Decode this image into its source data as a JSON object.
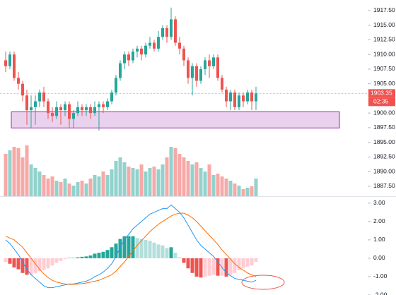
{
  "chart_data": {
    "type": "candlestick",
    "candles": {
      "open": [
        1909,
        1908,
        1910,
        1906,
        1905,
        1903,
        1900.5,
        1901,
        1902,
        1903.5,
        1902,
        1900,
        1899.5,
        1901,
        1900.5,
        1901.5,
        1899,
        1900,
        1901,
        1900.5,
        1901,
        1900,
        1901,
        1901.5,
        1901,
        1902,
        1903.5,
        1906,
        1908.5,
        1910,
        1909,
        1910.5,
        1911,
        1910,
        1911.5,
        1912,
        1911,
        1913,
        1914.5,
        1913,
        1916,
        1912,
        1911,
        1909,
        1906,
        1908,
        1905.5,
        1907.5,
        1909,
        1908,
        1909.5,
        1906,
        1904,
        1902,
        1903.5,
        1901,
        1903,
        1902,
        1903.5,
        1902
      ],
      "high": [
        1910.5,
        1910.5,
        1910.5,
        1907,
        1905.5,
        1904,
        1903,
        1903,
        1904,
        1904.5,
        1902.5,
        1901,
        1902,
        1901.5,
        1902,
        1902,
        1900.5,
        1902,
        1901.5,
        1901.5,
        1901.5,
        1902,
        1902,
        1902,
        1902.5,
        1904,
        1906.5,
        1909,
        1910.5,
        1910.5,
        1911,
        1911.5,
        1911.5,
        1912,
        1913,
        1912.5,
        1914,
        1915,
        1915,
        1918,
        1916.5,
        1913,
        1911.5,
        1909.5,
        1908.5,
        1908.5,
        1908,
        1909.5,
        1910,
        1910,
        1910,
        1906.5,
        1904.5,
        1904,
        1904,
        1903.5,
        1903.5,
        1904,
        1904,
        1904.5
      ],
      "low": [
        1907,
        1907.5,
        1905.5,
        1904,
        1902,
        1898,
        1897.5,
        1898,
        1901,
        1901,
        1899,
        1898.5,
        1899,
        1898,
        1899.5,
        1897.5,
        1897.5,
        1899.5,
        1899.5,
        1899.5,
        1899,
        1899.5,
        1897,
        1900,
        1900.5,
        1901.5,
        1903,
        1905.5,
        1907.5,
        1908,
        1908.5,
        1909.5,
        1909,
        1909.5,
        1911,
        1910.5,
        1910.5,
        1912.5,
        1912,
        1912.5,
        1911.5,
        1910,
        1908,
        1905,
        1903,
        1904.5,
        1905,
        1906.5,
        1906,
        1907.5,
        1905.5,
        1903.5,
        1901,
        1900.5,
        1900.5,
        1900.5,
        1901,
        1901.5,
        1900.5,
        1900.5
      ],
      "close": [
        1908,
        1910,
        1906,
        1905,
        1903,
        1900.5,
        1901,
        1902,
        1903.5,
        1902,
        1900,
        1899.5,
        1901,
        1900.5,
        1901.5,
        1899,
        1900,
        1901,
        1900.5,
        1901,
        1900,
        1901,
        1901.5,
        1901,
        1902,
        1903.5,
        1906,
        1908.5,
        1910,
        1909,
        1910.5,
        1911,
        1910,
        1911.5,
        1912,
        1911,
        1913,
        1914.5,
        1913,
        1916,
        1912,
        1911,
        1909,
        1906,
        1908,
        1905.5,
        1907.5,
        1909,
        1908,
        1909.5,
        1906,
        1904,
        1902,
        1903.5,
        1901,
        1903,
        1902,
        1903.5,
        1902,
        1903.35
      ]
    },
    "up_color": "#26a69a",
    "down_color": "#ef5350",
    "ylim": [
      1885.8,
      1919.3
    ],
    "yticks": [
      {
        "value": 1917.5,
        "label": "1917.50"
      },
      {
        "value": 1915,
        "label": "1915.00"
      },
      {
        "value": 1912.5,
        "label": "1912.50"
      },
      {
        "value": 1910,
        "label": "1910.00"
      },
      {
        "value": 1907.5,
        "label": "1907.50"
      },
      {
        "value": 1905,
        "label": "1905.00"
      },
      {
        "value": 1900,
        "label": "1900.00"
      },
      {
        "value": 1897.5,
        "label": "1897.50"
      },
      {
        "value": 1895,
        "label": "1895.00"
      },
      {
        "value": 1892.5,
        "label": "1892.50"
      },
      {
        "value": 1890,
        "label": "1890.00"
      },
      {
        "value": 1887.5,
        "label": "1887.50"
      }
    ],
    "last_price": 1903.35,
    "countdown": "02:35",
    "zone": {
      "top": 1900.2,
      "bottom": 1897.45,
      "color": "#e1bee7"
    },
    "volume": {
      "vlim": [
        0,
        80
      ],
      "values": [
        60,
        65,
        70,
        68,
        55,
        72,
        45,
        40,
        35,
        30,
        25,
        28,
        22,
        20,
        25,
        18,
        15,
        20,
        22,
        18,
        25,
        30,
        28,
        35,
        30,
        38,
        50,
        55,
        48,
        42,
        40,
        38,
        45,
        35,
        40,
        42,
        38,
        45,
        55,
        70,
        68,
        60,
        55,
        50,
        45,
        48,
        40,
        35,
        45,
        30,
        32,
        28,
        25,
        22,
        18,
        15,
        10,
        12,
        14,
        25
      ]
    },
    "macd": {
      "ylim": [
        -2,
        3.3
      ],
      "yticks": [
        {
          "value": 3,
          "label": "3.00"
        },
        {
          "value": 2,
          "label": "2.00"
        },
        {
          "value": 1,
          "label": "1.00"
        },
        {
          "value": 0,
          "label": "0.00"
        },
        {
          "value": -1,
          "label": "-1.00"
        },
        {
          "value": -2,
          "label": "-2.00"
        }
      ],
      "series": [
        {
          "color": "#2196f3",
          "values": [
            1.0,
            0.8,
            0.5,
            0.2,
            -0.2,
            -0.6,
            -0.9,
            -1.1,
            -1.3,
            -1.5,
            -1.6,
            -1.6,
            -1.55,
            -1.5,
            -1.45,
            -1.4,
            -1.4,
            -1.35,
            -1.3,
            -1.25,
            -1.15,
            -1.0,
            -0.9,
            -0.75,
            -0.55,
            -0.3,
            0.1,
            0.6,
            1.0,
            1.3,
            1.6,
            1.8,
            2.0,
            2.2,
            2.4,
            2.5,
            2.6,
            2.7,
            2.7,
            2.9,
            2.7,
            2.5,
            2.2,
            1.8,
            1.4,
            1.0,
            0.7,
            0.5,
            0.3,
            0.1,
            -0.2,
            -0.5,
            -0.8,
            -0.95,
            -1.1,
            -1.15,
            -1.2,
            -1.25,
            -1.3,
            -1.2
          ]
        },
        {
          "color": "#ff6d00",
          "values": [
            1.2,
            1.1,
            1.0,
            0.8,
            0.6,
            0.3,
            0.0,
            -0.3,
            -0.6,
            -0.85,
            -1.05,
            -1.2,
            -1.3,
            -1.35,
            -1.4,
            -1.42,
            -1.42,
            -1.4,
            -1.38,
            -1.35,
            -1.3,
            -1.25,
            -1.2,
            -1.1,
            -1.0,
            -0.9,
            -0.7,
            -0.45,
            -0.2,
            0.1,
            0.4,
            0.7,
            0.95,
            1.2,
            1.45,
            1.65,
            1.85,
            2.0,
            2.15,
            2.3,
            2.4,
            2.45,
            2.45,
            2.35,
            2.2,
            2.0,
            1.75,
            1.5,
            1.25,
            1.0,
            0.75,
            0.45,
            0.2,
            -0.05,
            -0.3,
            -0.5,
            -0.65,
            -0.8,
            -0.9,
            -1.0
          ]
        }
      ],
      "histogram": {
        "colors": [
          "#26a69a",
          "#b2dfdb",
          "#ffcdd2",
          "#ef5350"
        ],
        "values": [
          -0.2,
          -0.3,
          -0.5,
          -0.6,
          -0.8,
          -0.9,
          -0.9,
          -0.8,
          -0.7,
          -0.65,
          -0.55,
          -0.4,
          -0.25,
          -0.15,
          -0.05,
          0.02,
          0.02,
          0.05,
          0.08,
          0.1,
          0.15,
          0.25,
          0.3,
          0.35,
          0.45,
          0.6,
          0.8,
          1.05,
          1.2,
          1.2,
          1.2,
          1.1,
          1.05,
          1.0,
          0.95,
          0.85,
          0.75,
          0.7,
          0.55,
          0.6,
          0.3,
          0.05,
          -0.25,
          -0.55,
          -0.8,
          -1.0,
          -1.05,
          -1.0,
          -0.95,
          -0.9,
          -0.95,
          -0.95,
          -1.0,
          -0.9,
          -0.8,
          -0.65,
          -0.55,
          -0.45,
          -0.4,
          -0.2
        ]
      }
    }
  }
}
